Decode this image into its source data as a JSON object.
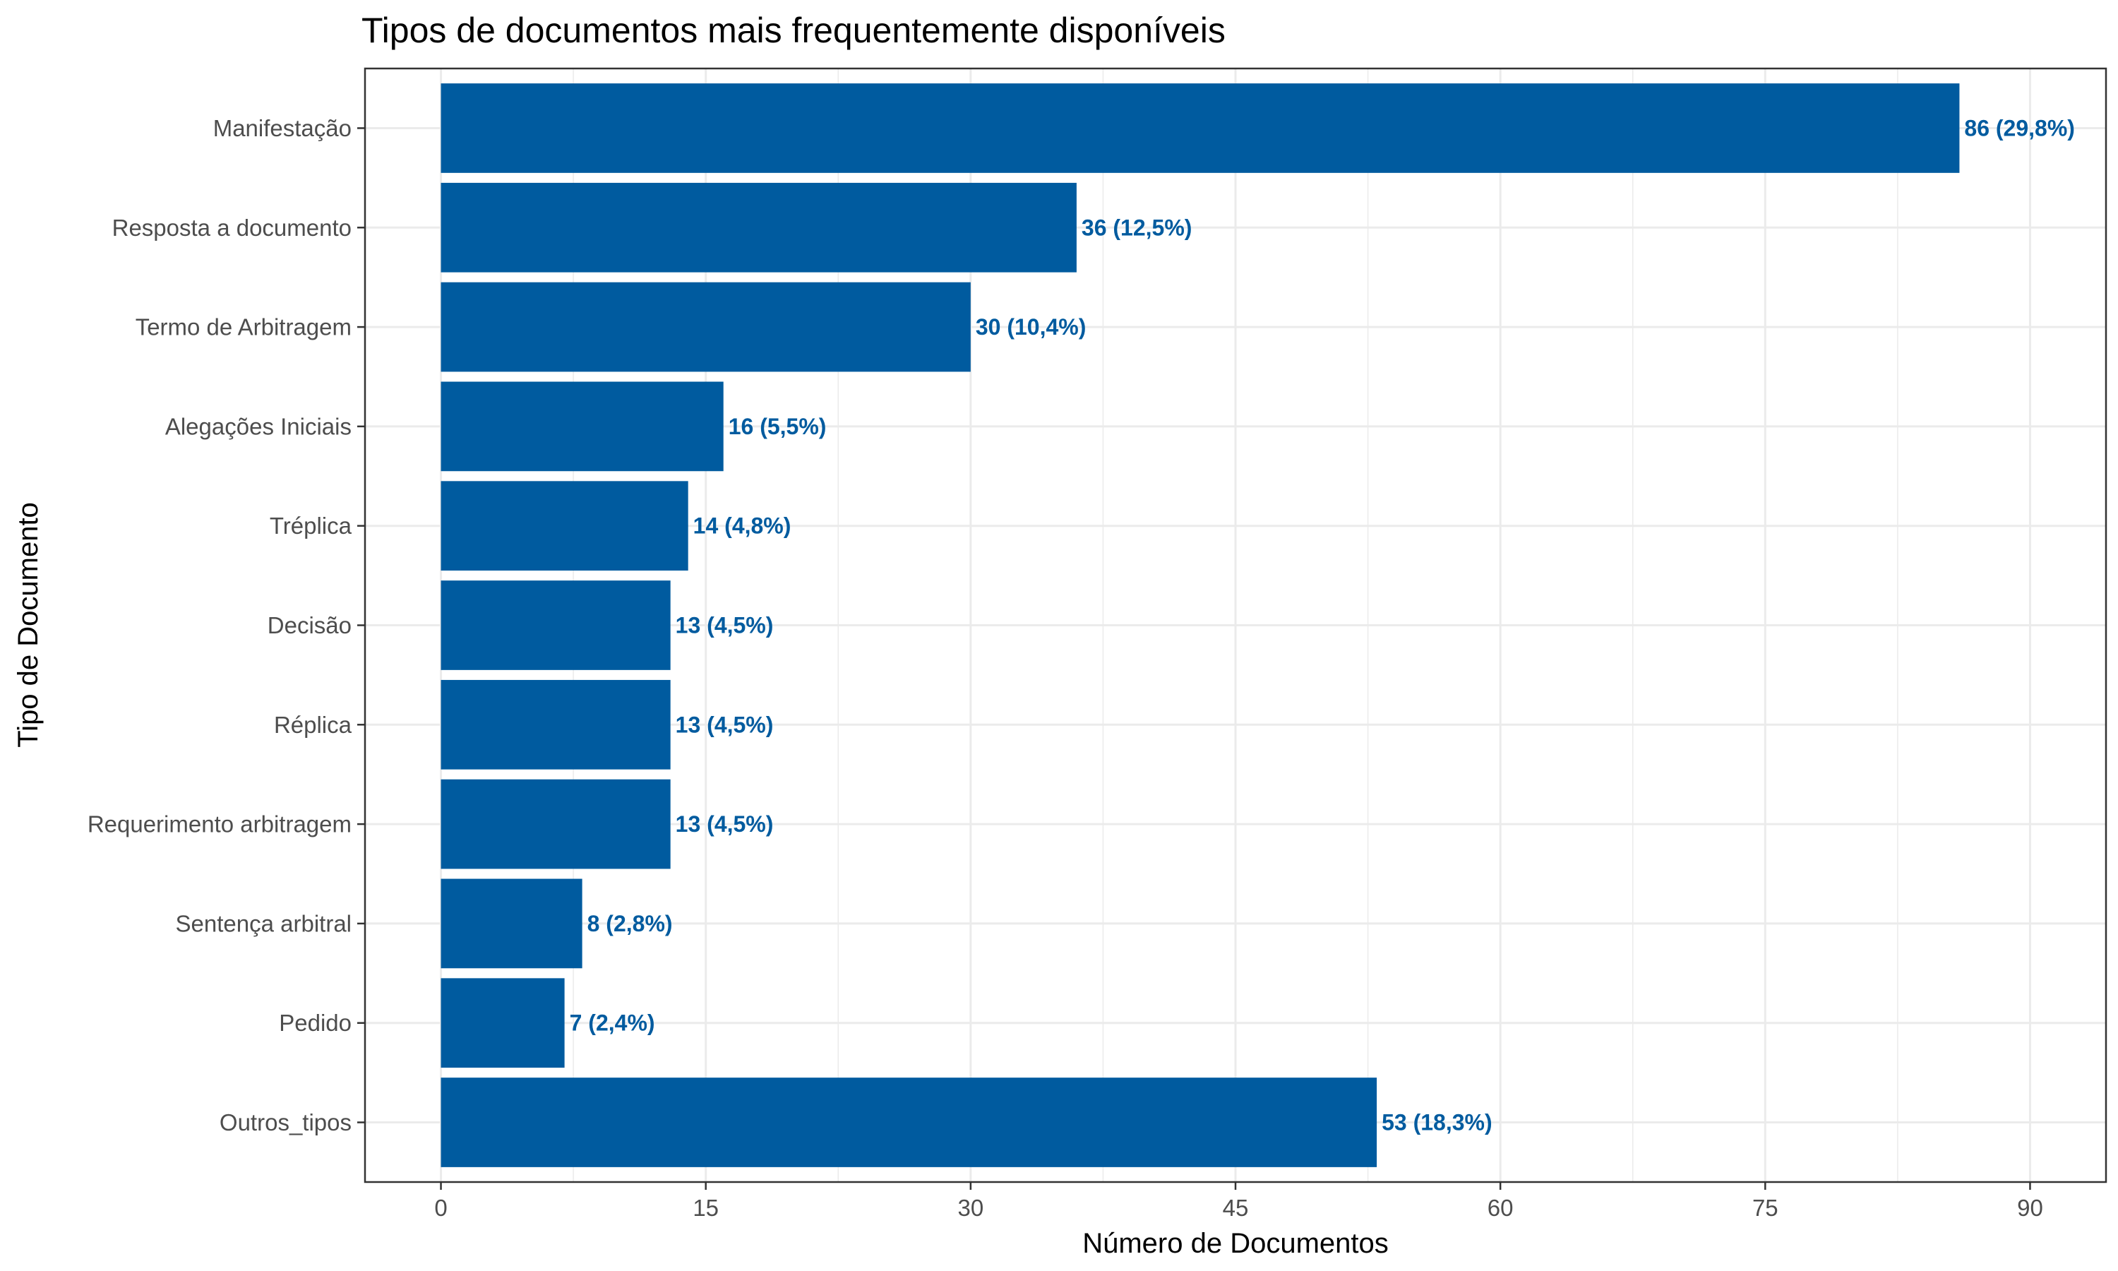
{
  "chart_data": {
    "type": "bar",
    "orientation": "horizontal",
    "title": "Tipos de documentos mais frequentemente disponíveis",
    "xlabel": "Número de Documentos",
    "ylabel": "Tipo de Documento",
    "categories": [
      "Manifestação",
      "Resposta a documento",
      "Termo de Arbitragem",
      "Alegações Iniciais",
      "Tréplica",
      "Decisão",
      "Réplica",
      "Requerimento arbitragem",
      "Sentença arbitral",
      "Pedido",
      "Outros_tipos"
    ],
    "values": [
      86,
      36,
      30,
      16,
      14,
      13,
      13,
      13,
      8,
      7,
      53
    ],
    "data_labels": [
      "86 (29,8%)",
      "36 (12,5%)",
      "30 (10,4%)",
      "16 (5,5%)",
      "14 (4,8%)",
      "13 (4,5%)",
      "13 (4,5%)",
      "13 (4,5%)",
      "8 (2,8%)",
      "7 (2,4%)",
      "53 (18,3%)"
    ],
    "xlim": [
      -4.3,
      94.3
    ],
    "x_ticks": [
      0,
      15,
      30,
      45,
      60,
      75,
      90
    ],
    "x_tick_labels": [
      "0",
      "15",
      "30",
      "45",
      "60",
      "75",
      "90"
    ],
    "grid": true,
    "legend": "none",
    "bar_color": "#005b9f",
    "label_color": "#005b9f"
  }
}
